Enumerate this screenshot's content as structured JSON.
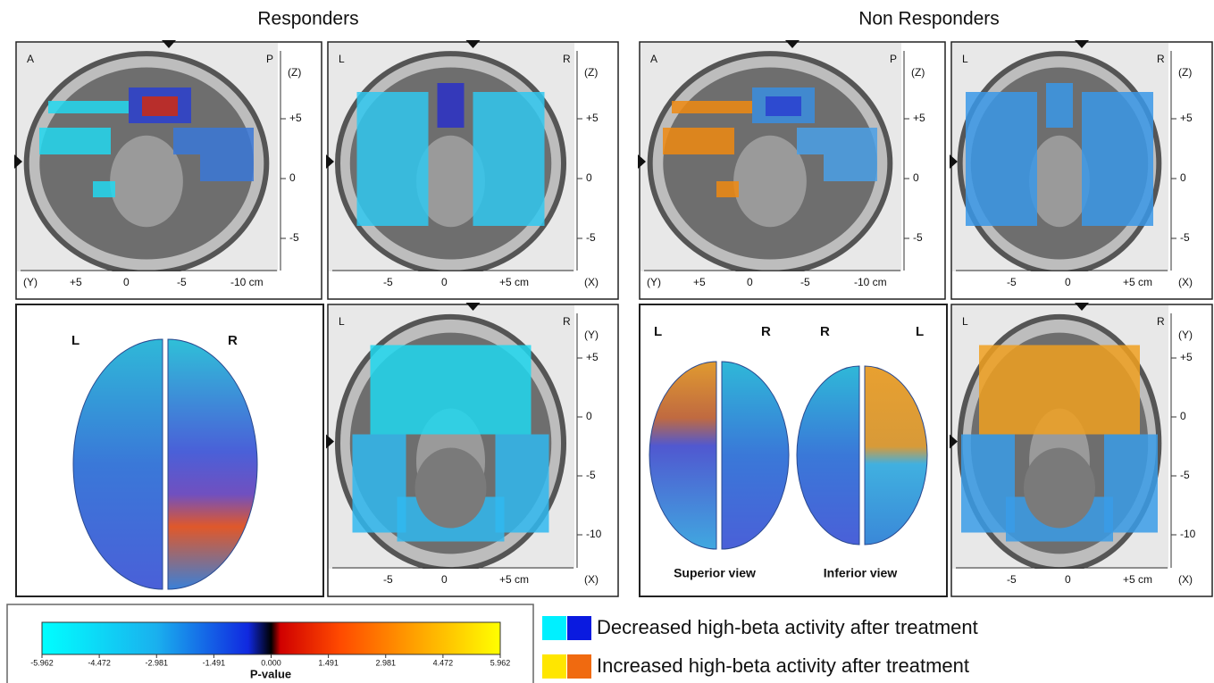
{
  "groups": [
    {
      "title": "Responders",
      "sagittal": {
        "corner_left": "A",
        "corner_right": "P",
        "axis_right": "(Z)",
        "right_ticks": [
          "+5",
          "0",
          "-5"
        ],
        "axis_bottom": "(Y)",
        "bottom_ticks": [
          "+5",
          "0",
          "-5",
          "-10 cm"
        ]
      },
      "coronal": {
        "corner_left": "L",
        "corner_right": "R",
        "axis_right": "(Z)",
        "right_ticks": [
          "+5",
          "0",
          "-5"
        ],
        "axis_bottom": "(X)",
        "bottom_ticks": [
          "-5",
          "0",
          "+5 cm"
        ]
      },
      "axial": {
        "corner_left": "L",
        "corner_right": "R",
        "axis_right": "(Y)",
        "right_ticks": [
          "+5",
          "0",
          "-5",
          "-10"
        ],
        "axis_bottom": "(X)",
        "bottom_ticks": [
          "-5",
          "0",
          "+5 cm"
        ]
      },
      "surface": {
        "labels": [
          "L",
          "R"
        ]
      }
    },
    {
      "title": "Non Responders",
      "sagittal": {
        "corner_left": "A",
        "corner_right": "P",
        "axis_right": "(Z)",
        "right_ticks": [
          "+5",
          "0",
          "-5"
        ],
        "axis_bottom": "(Y)",
        "bottom_ticks": [
          "+5",
          "0",
          "-5",
          "-10 cm"
        ]
      },
      "coronal": {
        "corner_left": "L",
        "corner_right": "R",
        "axis_right": "(Z)",
        "right_ticks": [
          "+5",
          "0",
          "-5"
        ],
        "axis_bottom": "(X)",
        "bottom_ticks": [
          "-5",
          "0",
          "+5 cm"
        ]
      },
      "axial": {
        "corner_left": "L",
        "corner_right": "R",
        "axis_right": "(Y)",
        "right_ticks": [
          "+5",
          "0",
          "-5",
          "-10"
        ],
        "axis_bottom": "(X)",
        "bottom_ticks": [
          "-5",
          "0",
          "+5 cm"
        ]
      },
      "surface": {
        "labels": [
          "L",
          "R",
          "R",
          "L"
        ],
        "captions": [
          "Superior view",
          "Inferior view"
        ]
      }
    }
  ],
  "colorbar": {
    "ticks": [
      "-5.962",
      "-4.472",
      "-2.981",
      "-1.491",
      "0.000",
      "1.491",
      "2.981",
      "4.472",
      "5.962"
    ],
    "label": "P-value"
  },
  "legend": [
    "Decreased high-beta activity after treatment",
    "Increased high-beta activity after treatment"
  ]
}
